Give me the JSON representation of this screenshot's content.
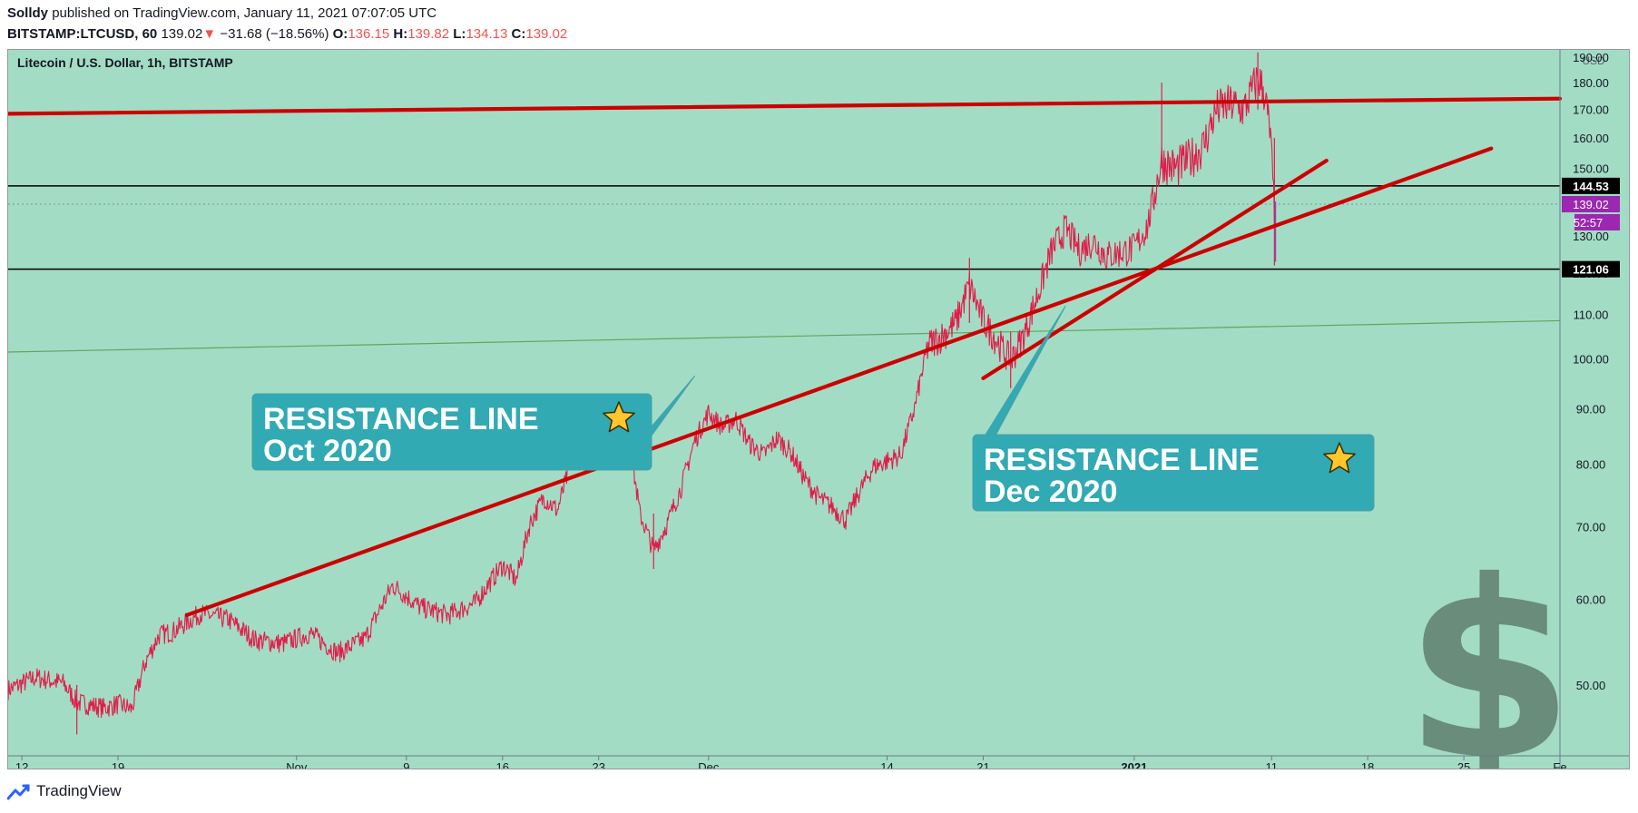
{
  "header": {
    "author": "Solldy",
    "publish_prefix": "published on TradingView.com, January 11, 2021 07:07:05 UTC",
    "symbol": "BITSTAMP:LTCUSD, 60",
    "last": "139.02",
    "change": "▼",
    "change_value": "−31.68 (−18.56%)",
    "o_label": "O:",
    "o": "136.15",
    "h_label": "H:",
    "h": "139.82",
    "l_label": "L:",
    "l": "134.13",
    "c_label": "C:",
    "c": "139.02"
  },
  "footer": {
    "brand": "TradingView"
  },
  "colors": {
    "background": "#a3dcc5",
    "candles": "#e01d49",
    "trendline": "#cc0000",
    "callout": "#31aab4",
    "ma_line": "#5ea85a",
    "current_price_tag": "#9c27b0",
    "dollar_symbol": "#6a8c7a"
  },
  "chart_data": {
    "type": "line",
    "title": "Litecoin / U.S. Dollar, 1h, BITSTAMP",
    "currency": "USD",
    "y_scale": "log",
    "ylim": [
      43,
      193
    ],
    "xlim": [
      "2020-10-11",
      "2021-02-01"
    ],
    "y_ticks": [
      190,
      180,
      170,
      160,
      150,
      140,
      130,
      120,
      110,
      100,
      90,
      80,
      70,
      60,
      50
    ],
    "y_tick_labels": [
      "190.00",
      "180.00",
      "170.00",
      "160.00",
      "150.00",
      "140.00",
      "130.00",
      "120.00",
      "110.00",
      "100.00",
      "90.00",
      "80.00",
      "70.00",
      "60.00",
      "50.00"
    ],
    "x_ticks": [
      {
        "date": "2020-10-12",
        "label": "12"
      },
      {
        "date": "2020-10-19",
        "label": "19"
      },
      {
        "date": "2020-11-01",
        "label": "Nov"
      },
      {
        "date": "2020-11-09",
        "label": "9"
      },
      {
        "date": "2020-11-16",
        "label": "16"
      },
      {
        "date": "2020-11-23",
        "label": "23"
      },
      {
        "date": "2020-12-01",
        "label": "Dec"
      },
      {
        "date": "2020-12-14",
        "label": "14"
      },
      {
        "date": "2020-12-21",
        "label": "21"
      },
      {
        "date": "2021-01-01",
        "label": "2021"
      },
      {
        "date": "2021-01-11",
        "label": "11"
      },
      {
        "date": "2021-01-18",
        "label": "18"
      },
      {
        "date": "2021-01-25",
        "label": "25"
      },
      {
        "date": "2021-02-01",
        "label": "Fe"
      }
    ],
    "series": [
      {
        "style": "price",
        "points": [
          [
            "2020-10-11",
            49.5
          ],
          [
            "2020-10-13",
            50.8
          ],
          [
            "2020-10-15",
            50.2
          ],
          [
            "2020-10-16",
            48.2
          ],
          [
            "2020-10-18",
            47.6
          ],
          [
            "2020-10-19",
            48.0
          ],
          [
            "2020-10-20",
            47.5
          ],
          [
            "2020-10-21",
            52.5
          ],
          [
            "2020-10-22",
            55.6
          ],
          [
            "2020-10-23",
            56.0
          ],
          [
            "2020-10-25",
            58.2
          ],
          [
            "2020-10-27",
            57.5
          ],
          [
            "2020-10-29",
            55.0
          ],
          [
            "2020-10-31",
            54.6
          ],
          [
            "2020-11-02",
            55.8
          ],
          [
            "2020-11-04",
            53.5
          ],
          [
            "2020-11-06",
            55.2
          ],
          [
            "2020-11-08",
            61.8
          ],
          [
            "2020-11-10",
            59.0
          ],
          [
            "2020-11-12",
            58.0
          ],
          [
            "2020-11-14",
            59.5
          ],
          [
            "2020-11-16",
            64.5
          ],
          [
            "2020-11-17",
            62.5
          ],
          [
            "2020-11-18",
            70.5
          ],
          [
            "2020-11-19",
            74.5
          ],
          [
            "2020-11-20",
            72.5
          ],
          [
            "2020-11-21",
            80.2
          ],
          [
            "2020-11-22",
            84.0
          ],
          [
            "2020-11-23",
            88.5
          ],
          [
            "2020-11-24",
            91.5
          ],
          [
            "2020-11-25",
            87.0
          ],
          [
            "2020-11-26",
            72.0
          ],
          [
            "2020-11-27",
            66.5
          ],
          [
            "2020-11-28",
            70.5
          ],
          [
            "2020-11-29",
            76.0
          ],
          [
            "2020-11-30",
            84.0
          ],
          [
            "2020-12-01",
            89.2
          ],
          [
            "2020-12-02",
            86.5
          ],
          [
            "2020-12-03",
            88.0
          ],
          [
            "2020-12-04",
            83.5
          ],
          [
            "2020-12-05",
            81.5
          ],
          [
            "2020-12-06",
            84.5
          ],
          [
            "2020-12-07",
            82.0
          ],
          [
            "2020-12-08",
            77.5
          ],
          [
            "2020-12-09",
            74.5
          ],
          [
            "2020-12-10",
            73.0
          ],
          [
            "2020-12-11",
            71.0
          ],
          [
            "2020-12-12",
            75.5
          ],
          [
            "2020-12-13",
            79.5
          ],
          [
            "2020-12-14",
            80.5
          ],
          [
            "2020-12-15",
            81.5
          ],
          [
            "2020-12-16",
            90.0
          ],
          [
            "2020-12-17",
            103.0
          ],
          [
            "2020-12-18",
            105.0
          ],
          [
            "2020-12-19",
            108.0
          ],
          [
            "2020-12-20",
            117.0
          ],
          [
            "2020-12-21",
            108.5
          ],
          [
            "2020-12-22",
            104.0
          ],
          [
            "2020-12-23",
            99.5
          ],
          [
            "2020-12-24",
            105.5
          ],
          [
            "2020-12-25",
            115.0
          ],
          [
            "2020-12-26",
            126.0
          ],
          [
            "2020-12-27",
            132.0
          ],
          [
            "2020-12-28",
            126.0
          ],
          [
            "2020-12-29",
            128.5
          ],
          [
            "2020-12-30",
            124.5
          ],
          [
            "2020-12-31",
            125.5
          ],
          [
            "2021-01-01",
            126.5
          ],
          [
            "2021-01-02",
            133.0
          ],
          [
            "2021-01-03",
            152.5
          ],
          [
            "2021-01-04",
            150.0
          ],
          [
            "2021-01-05",
            153.0
          ],
          [
            "2021-01-06",
            157.0
          ],
          [
            "2021-01-07",
            170.0
          ],
          [
            "2021-01-08",
            172.0
          ],
          [
            "2021-01-09",
            170.0
          ],
          [
            "2021-01-10",
            182.0
          ],
          [
            "2021-01-10T12",
            176.0
          ],
          [
            "2021-01-10T22",
            160.0
          ],
          [
            "2021-01-11T05",
            136.0
          ],
          [
            "2021-01-11T07",
            139.02
          ]
        ]
      }
    ],
    "horizontal_levels": [
      {
        "price": 144.53,
        "label": "144.53"
      },
      {
        "price": 121.06,
        "label": "121.06"
      }
    ],
    "current_price": {
      "price": 139.02,
      "label": "139.02",
      "countdown": "52:57"
    },
    "trendlines": [
      {
        "from": [
          "2020-10-11",
          168.5
        ],
        "to": [
          "2021-02-01",
          174.0
        ]
      },
      {
        "from": [
          "2020-10-24",
          58.0
        ],
        "to": [
          "2021-01-27",
          156.5
        ]
      },
      {
        "from": [
          "2020-12-21",
          96.0
        ],
        "to": [
          "2021-01-15",
          152.5
        ]
      },
      {
        "from": [
          "2020-10-11",
          101.5
        ],
        "to": [
          "2021-02-01",
          108.5
        ],
        "style": "thin"
      }
    ],
    "annotations": [
      {
        "line1": "RESISTANCE LINE",
        "line2": "Oct 2020",
        "star": "star-icon",
        "pointer": [
          "2020-11-30",
          96.5
        ]
      },
      {
        "line1": "RESISTANCE LINE",
        "line2": "Dec 2020",
        "star": "star-icon",
        "pointer": [
          "2020-12-27",
          112.0
        ]
      }
    ],
    "watermark": "dollar-sign-icon"
  }
}
